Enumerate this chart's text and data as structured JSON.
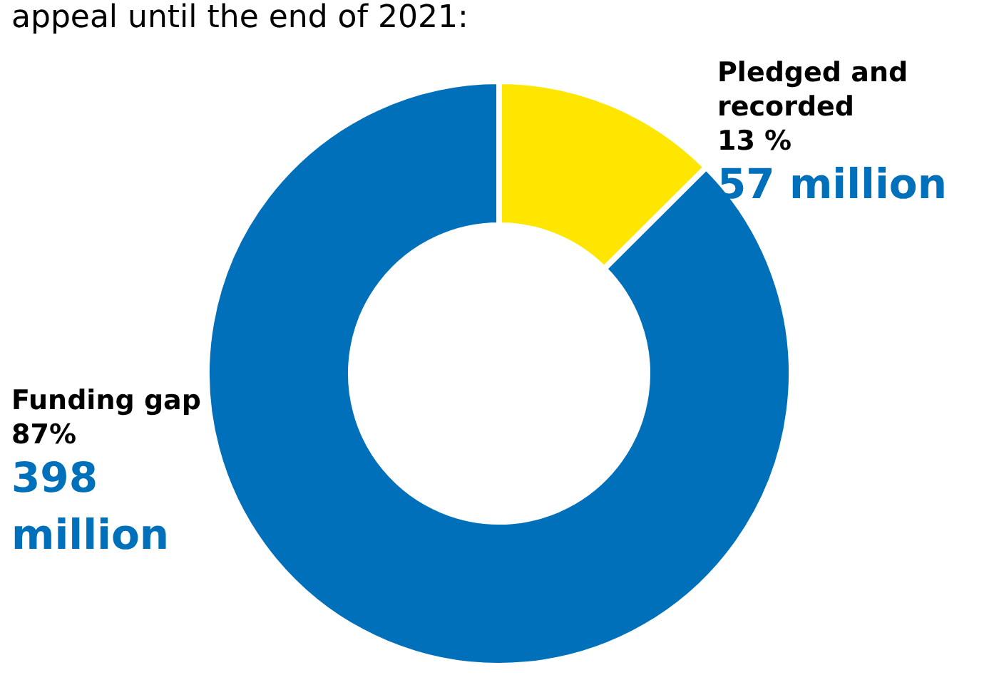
{
  "chart_data": {
    "type": "donut",
    "title": "appeal until the end of 2021:",
    "categories": [
      "Pledged and recorded",
      "Funding gap"
    ],
    "values": [
      57,
      398
    ],
    "colors": [
      "#ffe600",
      "#0070bb"
    ],
    "value_labels": [
      "57 million",
      "398 million"
    ],
    "annotations": [
      "13 %",
      "87%"
    ]
  }
}
